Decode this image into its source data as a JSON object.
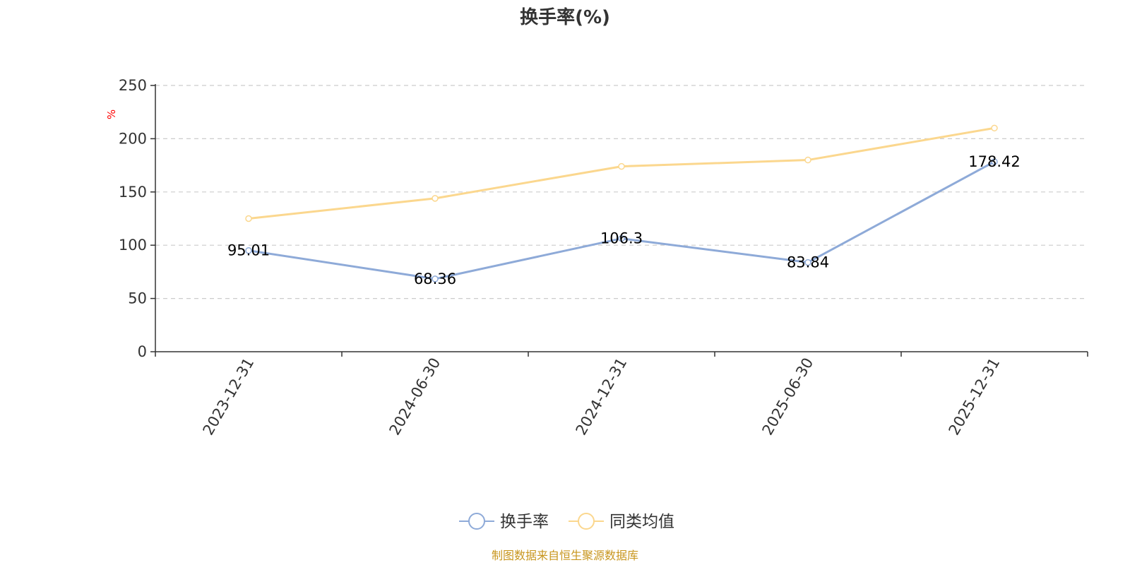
{
  "chart_data": {
    "type": "line",
    "title": "换手率(%)",
    "ylabel": "%",
    "xlabel": "",
    "categories": [
      "2023-12-31",
      "2024-06-30",
      "2024-12-31",
      "2025-06-30",
      "2025-12-31"
    ],
    "series": [
      {
        "name": "换手率",
        "color": "#8eaad8",
        "values": [
          95.01,
          68.36,
          106.3,
          83.84,
          178.42
        ],
        "labels": [
          "95.01",
          "68.36",
          "106.3",
          "83.84",
          "178.42"
        ],
        "show_labels": true
      },
      {
        "name": "同类均值",
        "color": "#fbd78e",
        "values": [
          125,
          144,
          174,
          180,
          210
        ],
        "show_labels": false
      }
    ],
    "ylim": [
      0,
      250
    ],
    "yticks": [
      0,
      50,
      100,
      150,
      200,
      250
    ],
    "ytick_labels": [
      "0",
      "50",
      "100",
      "150",
      "200",
      "250"
    ],
    "grid": true,
    "legend_position": "bottom-center",
    "unit_color": "#ff0000"
  },
  "source": {
    "text": "制图数据来自恒生聚源数据库",
    "color": "#c8961e"
  }
}
